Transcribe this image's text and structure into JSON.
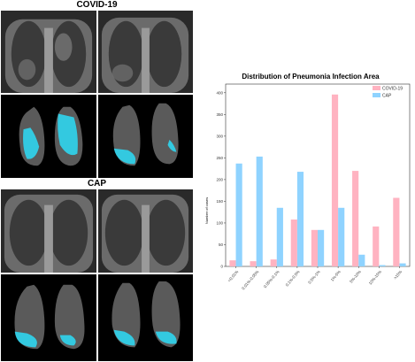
{
  "figure": {
    "panel_titles": [
      "COVID-19",
      "CAP"
    ]
  },
  "colors": {
    "covid": "#FFB3C1",
    "cap": "#8FD3FF",
    "lesion_covid": "#33C9E0",
    "lesion_cap": "#33C9E0"
  },
  "chart_data": {
    "type": "bar",
    "title": "Distribution of Pneumonia Infection Area",
    "xlabel": "",
    "ylabel": "Number of cases",
    "ylim": [
      0,
      420
    ],
    "yticks": [
      0,
      50,
      100,
      150,
      200,
      250,
      300,
      350,
      400
    ],
    "grid": false,
    "legend_position": "top-right",
    "categories": [
      "<0.01%",
      "0.01%-0.05%",
      "0.05%-0.1%",
      "0.1%-0.5%",
      "0.5%-1%",
      "1%-5%",
      "5%-10%",
      "10%-15%",
      ">15%"
    ],
    "series": [
      {
        "name": "COVID-19",
        "values": [
          14,
          12,
          16,
          108,
          84,
          396,
          220,
          92,
          158
        ]
      },
      {
        "name": "CAP",
        "values": [
          237,
          253,
          135,
          218,
          84,
          135,
          27,
          3,
          7
        ]
      }
    ]
  }
}
